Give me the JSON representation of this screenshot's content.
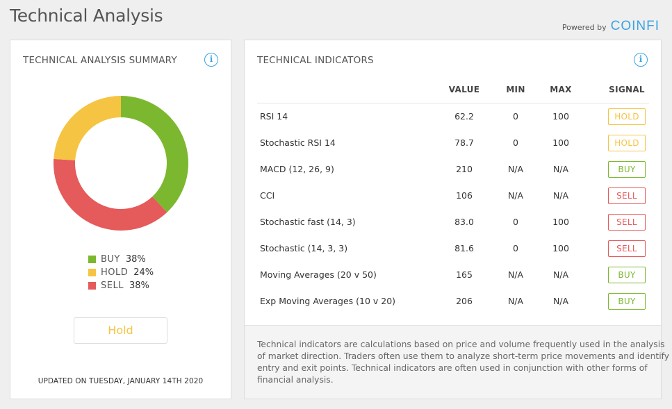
{
  "page": {
    "title": "Technical Analysis",
    "powered_label": "Powered by",
    "brand": "COINFI"
  },
  "colors": {
    "buy": "#7cb82f",
    "hold": "#f6c443",
    "sell": "#e55a5a",
    "accent": "#3aa3e3"
  },
  "summary": {
    "title": "TECHNICAL ANALYSIS SUMMARY",
    "info_icon": "info-icon",
    "legend": [
      {
        "label": "BUY",
        "value": "38%",
        "color": "#7cb82f"
      },
      {
        "label": "HOLD",
        "value": "24%",
        "color": "#f6c443"
      },
      {
        "label": "SELL",
        "value": "38%",
        "color": "#e55a5a"
      }
    ],
    "button_label": "Hold",
    "updated": "UPDATED ON TUESDAY, JANUARY 14TH 2020"
  },
  "chart_data": {
    "type": "pie",
    "categories": [
      "BUY",
      "SELL",
      "HOLD"
    ],
    "values": [
      38,
      38,
      24
    ],
    "colors": [
      "#7cb82f",
      "#e55a5a",
      "#f6c443"
    ],
    "donut": true
  },
  "indicators": {
    "title": "TECHNICAL INDICATORS",
    "info_icon": "info-icon",
    "columns": {
      "value": "VALUE",
      "min": "MIN",
      "max": "MAX",
      "signal": "SIGNAL"
    },
    "rows": [
      {
        "name": "RSI 14",
        "value": "62.2",
        "min": "0",
        "max": "100",
        "signal": "HOLD",
        "kind": "hold"
      },
      {
        "name": "Stochastic RSI 14",
        "value": "78.7",
        "min": "0",
        "max": "100",
        "signal": "HOLD",
        "kind": "hold"
      },
      {
        "name": "MACD (12, 26, 9)",
        "value": "210",
        "min": "N/A",
        "max": "N/A",
        "signal": "BUY",
        "kind": "buy"
      },
      {
        "name": "CCI",
        "value": "106",
        "min": "N/A",
        "max": "N/A",
        "signal": "SELL",
        "kind": "sell"
      },
      {
        "name": "Stochastic fast (14, 3)",
        "value": "83.0",
        "min": "0",
        "max": "100",
        "signal": "SELL",
        "kind": "sell"
      },
      {
        "name": "Stochastic (14, 3, 3)",
        "value": "81.6",
        "min": "0",
        "max": "100",
        "signal": "SELL",
        "kind": "sell"
      },
      {
        "name": "Moving Averages (20 v 50)",
        "value": "165",
        "min": "N/A",
        "max": "N/A",
        "signal": "BUY",
        "kind": "buy"
      },
      {
        "name": "Exp Moving Averages (10 v 20)",
        "value": "206",
        "min": "N/A",
        "max": "N/A",
        "signal": "BUY",
        "kind": "buy"
      }
    ],
    "description": "Technical indicators are calculations based on price and volume frequently used in the analysis of market direction. Traders often use them to analyze short-term price movements and identify entry and exit points. Technical indicators are often used in conjunction with other forms of financial analysis."
  }
}
